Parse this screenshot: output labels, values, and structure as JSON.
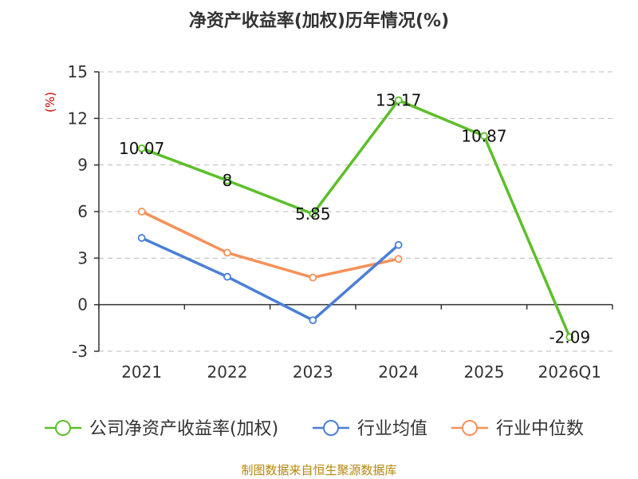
{
  "title": "净资产收益率(加权)历年情况(%)",
  "source": "制图数据来自恒生聚源数据库",
  "chart_data": {
    "type": "line",
    "title": "净资产收益率(加权)历年情况(%)",
    "unit_label": "(%)",
    "categories": [
      "2021",
      "2022",
      "2023",
      "2024",
      "2025",
      "2026Q1"
    ],
    "ylim": [
      -3,
      15
    ],
    "yticks": [
      -3,
      0,
      3,
      6,
      9,
      12,
      15
    ],
    "grid": true,
    "legend_position": "bottom",
    "series": [
      {
        "name": "公司净资产收益率(加权)",
        "color": "#5cbf2a",
        "values": [
          10.07,
          8,
          5.85,
          13.17,
          10.87,
          -2.09
        ],
        "labels": [
          "10.07",
          "8",
          "5.85",
          "13.17",
          "10.87",
          "-2.09"
        ]
      },
      {
        "name": "行业均值",
        "color": "#4a7fd6",
        "values": [
          4.3,
          1.8,
          -1.0,
          3.85,
          null,
          null
        ]
      },
      {
        "name": "行业中位数",
        "color": "#f5915a",
        "values": [
          6.0,
          3.35,
          1.75,
          2.95,
          null,
          null
        ]
      }
    ]
  }
}
